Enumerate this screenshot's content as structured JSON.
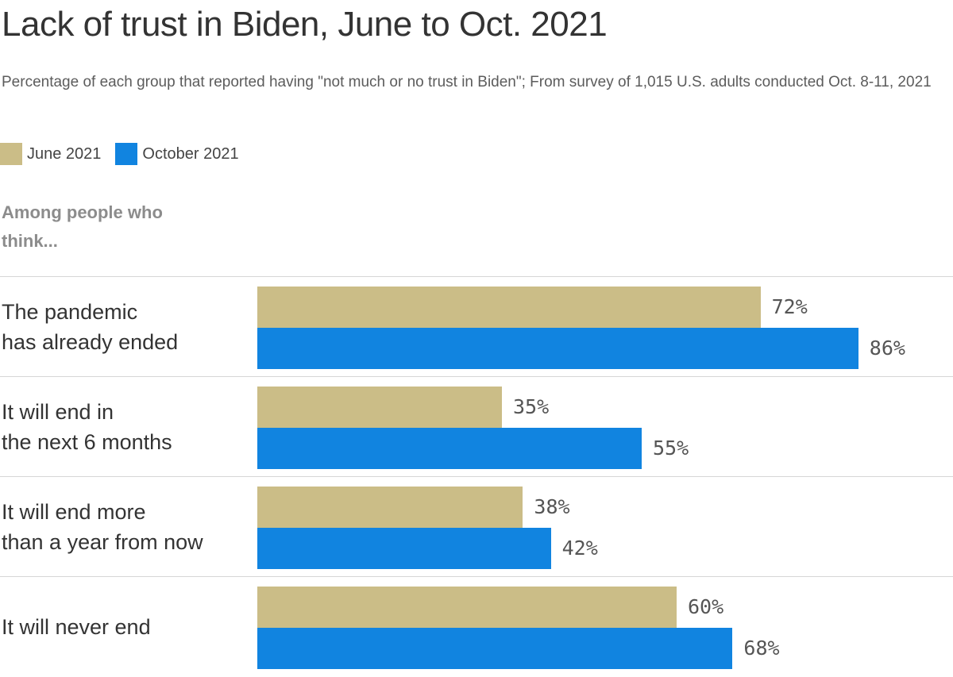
{
  "title": "Lack of trust in Biden, June to Oct. 2021",
  "subtitle": "Percentage of each group that reported having \"not much or no trust in Biden\"; From survey of 1,015 U.S. adults conducted Oct. 8-11, 2021",
  "legend": [
    {
      "label": "June 2021",
      "color": "#cbbd87"
    },
    {
      "label": "October 2021",
      "color": "#1184e0"
    }
  ],
  "group_header": "Among people who think...",
  "chart_data": {
    "type": "bar",
    "orientation": "horizontal",
    "title": "Lack of trust in Biden, June to Oct. 2021",
    "categories": [
      "The pandemic has already ended",
      "It will end in the next 6 months",
      "It will end more than a year from now",
      "It will never end"
    ],
    "category_labels": [
      "The pandemic\nhas already ended",
      "It will end in\nthe next 6 months",
      "It will end more\nthan a year from now",
      "It will never end"
    ],
    "series": [
      {
        "name": "June 2021",
        "color": "#cbbd87",
        "values": [
          72,
          35,
          38,
          60
        ]
      },
      {
        "name": "October 2021",
        "color": "#1184e0",
        "values": [
          86,
          55,
          42,
          68
        ]
      }
    ],
    "value_suffix": "%",
    "xlim": [
      0,
      100
    ],
    "grid": false,
    "legend_position": "top-left"
  }
}
